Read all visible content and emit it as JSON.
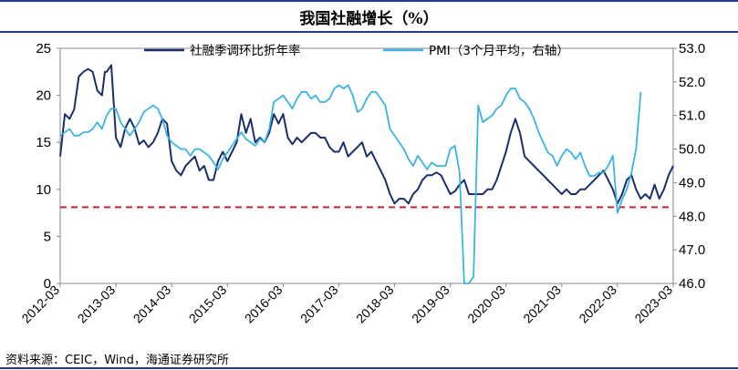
{
  "title": "我国社融增长（%）",
  "source": "资料来源：CEIC，Wind，海通证券研究所",
  "colors": {
    "social_financing": "#1a2f6e",
    "pmi": "#3ab4e6",
    "threshold": "#c0262d"
  },
  "chart_data": {
    "type": "line",
    "title": "",
    "xlabel": "",
    "ylabel": "",
    "ylabel_right": "",
    "x_tick_labels": [
      "2012-03",
      "2013-03",
      "2014-03",
      "2015-03",
      "2016-03",
      "2017-03",
      "2018-03",
      "2019-03",
      "2020-03",
      "2021-03",
      "2022-03",
      "2023-03"
    ],
    "y_left": {
      "range": [
        0,
        25
      ],
      "ticks": [
        0,
        5,
        10,
        15,
        20,
        25
      ]
    },
    "y_right": {
      "range": [
        46.0,
        53.0
      ],
      "ticks": [
        "46.0",
        "47.0",
        "48.0",
        "49.0",
        "50.0",
        "51.0",
        "52.0",
        "53.0"
      ]
    },
    "legend_position": "top",
    "grid": false,
    "reference_line": {
      "axis": "left",
      "value": 8.1,
      "style": "dashed"
    },
    "series": [
      {
        "name": "社融季调环比折年率",
        "axis": "left",
        "points": [
          [
            "2012-03",
            13.5
          ],
          [
            "2012-04",
            18
          ],
          [
            "2012-05",
            17.5
          ],
          [
            "2012-06",
            18.5
          ],
          [
            "2012-07",
            22
          ],
          [
            "2012-08",
            22.5
          ],
          [
            "2012-09",
            22.8
          ],
          [
            "2012-10",
            22.5
          ],
          [
            "2012-11",
            20.5
          ],
          [
            "2012-12",
            20
          ],
          [
            "2012-12-20",
            22.5
          ],
          [
            "2013-01",
            22.5
          ],
          [
            "2013-02",
            23.2
          ],
          [
            "2013-03",
            15.5
          ],
          [
            "2013-04",
            14.5
          ],
          [
            "2013-05",
            16.5
          ],
          [
            "2013-06",
            17.5
          ],
          [
            "2013-07",
            16.5
          ],
          [
            "2013-08",
            14.8
          ],
          [
            "2013-09",
            15.2
          ],
          [
            "2013-10",
            14.5
          ],
          [
            "2013-11",
            15
          ],
          [
            "2013-12",
            16
          ],
          [
            "2014-01",
            17.5
          ],
          [
            "2014-02",
            17
          ],
          [
            "2014-03",
            13
          ],
          [
            "2014-04",
            12
          ],
          [
            "2014-05",
            11.5
          ],
          [
            "2014-06",
            12.5
          ],
          [
            "2014-07",
            13
          ],
          [
            "2014-08",
            13.5
          ],
          [
            "2014-09",
            12
          ],
          [
            "2014-10",
            12.5
          ],
          [
            "2014-11",
            11
          ],
          [
            "2014-12",
            11
          ],
          [
            "2015-01",
            13
          ],
          [
            "2015-02",
            14
          ],
          [
            "2015-03",
            13
          ],
          [
            "2015-04",
            14
          ],
          [
            "2015-05",
            15
          ],
          [
            "2015-06",
            18
          ],
          [
            "2015-07",
            16
          ],
          [
            "2015-08",
            17.5
          ],
          [
            "2015-09",
            15
          ],
          [
            "2015-10",
            15.5
          ],
          [
            "2015-11",
            15
          ],
          [
            "2015-12",
            16
          ],
          [
            "2016-01",
            18
          ],
          [
            "2016-02",
            17
          ],
          [
            "2016-03",
            18
          ],
          [
            "2016-04",
            15.5
          ],
          [
            "2016-05",
            14.8
          ],
          [
            "2016-06",
            15.5
          ],
          [
            "2016-07",
            15
          ],
          [
            "2016-08",
            15.5
          ],
          [
            "2016-09",
            16
          ],
          [
            "2016-10",
            16
          ],
          [
            "2016-11",
            15.5
          ],
          [
            "2016-12",
            15.5
          ],
          [
            "2017-01",
            14.5
          ],
          [
            "2017-02",
            14
          ],
          [
            "2017-03",
            14
          ],
          [
            "2017-04",
            15
          ],
          [
            "2017-05",
            13.5
          ],
          [
            "2017-06",
            14
          ],
          [
            "2017-07",
            14.5
          ],
          [
            "2017-08",
            15
          ],
          [
            "2017-09",
            13.5
          ],
          [
            "2017-10",
            14
          ],
          [
            "2017-11",
            13
          ],
          [
            "2017-12",
            12
          ],
          [
            "2018-01",
            11
          ],
          [
            "2018-02",
            9.5
          ],
          [
            "2018-03",
            8.5
          ],
          [
            "2018-04",
            9
          ],
          [
            "2018-05",
            9
          ],
          [
            "2018-06",
            8.5
          ],
          [
            "2018-07",
            9.5
          ],
          [
            "2018-08",
            10
          ],
          [
            "2018-09",
            11
          ],
          [
            "2018-10",
            11.5
          ],
          [
            "2018-11",
            11.5
          ],
          [
            "2018-12",
            11.8
          ],
          [
            "2019-01",
            11.5
          ],
          [
            "2019-02",
            10.5
          ],
          [
            "2019-03",
            9.5
          ],
          [
            "2019-04",
            9.8
          ],
          [
            "2019-05",
            10.5
          ],
          [
            "2019-06",
            11
          ],
          [
            "2019-07",
            9.5
          ],
          [
            "2019-08",
            9.5
          ],
          [
            "2019-09",
            9.5
          ],
          [
            "2019-10",
            9.5
          ],
          [
            "2019-11",
            10
          ],
          [
            "2019-12",
            10
          ],
          [
            "2020-01",
            11
          ],
          [
            "2020-02",
            12.5
          ],
          [
            "2020-03",
            14
          ],
          [
            "2020-04",
            16
          ],
          [
            "2020-05",
            17.5
          ],
          [
            "2020-06",
            16
          ],
          [
            "2020-07",
            13.5
          ],
          [
            "2020-08",
            13
          ],
          [
            "2020-09",
            12.5
          ],
          [
            "2020-10",
            12
          ],
          [
            "2020-11",
            11.5
          ],
          [
            "2020-12",
            11
          ],
          [
            "2021-01",
            10.5
          ],
          [
            "2021-02",
            10
          ],
          [
            "2021-03",
            9.5
          ],
          [
            "2021-04",
            10
          ],
          [
            "2021-05",
            9.5
          ],
          [
            "2021-06",
            9.5
          ],
          [
            "2021-07",
            10
          ],
          [
            "2021-08",
            10
          ],
          [
            "2021-09",
            10.5
          ],
          [
            "2021-10",
            11
          ],
          [
            "2021-11",
            11.5
          ],
          [
            "2021-12",
            12
          ],
          [
            "2022-01",
            11
          ],
          [
            "2022-02",
            10
          ],
          [
            "2022-03",
            8.5
          ],
          [
            "2022-04",
            9.5
          ],
          [
            "2022-05",
            11
          ],
          [
            "2022-06",
            11.5
          ],
          [
            "2022-07",
            10
          ],
          [
            "2022-08",
            9
          ],
          [
            "2022-09",
            9.5
          ],
          [
            "2022-10",
            9
          ],
          [
            "2022-11",
            10.5
          ],
          [
            "2022-12",
            9
          ],
          [
            "2023-01",
            10
          ],
          [
            "2023-02",
            11.5
          ],
          [
            "2023-03",
            12.5
          ]
        ]
      },
      {
        "name": "PMI（3个月平均，右轴）",
        "axis": "right",
        "points": [
          [
            "2012-03",
            50.4
          ],
          [
            "2012-04",
            50.5
          ],
          [
            "2012-05",
            50.6
          ],
          [
            "2012-06",
            50.4
          ],
          [
            "2012-07",
            50.4
          ],
          [
            "2012-08",
            50.5
          ],
          [
            "2012-09",
            50.5
          ],
          [
            "2012-10",
            50.6
          ],
          [
            "2012-11",
            50.8
          ],
          [
            "2012-12",
            50.6
          ],
          [
            "2013-01",
            51
          ],
          [
            "2013-02",
            51.2
          ],
          [
            "2013-03",
            51.2
          ],
          [
            "2013-04",
            50.8
          ],
          [
            "2013-05",
            50.6
          ],
          [
            "2013-06",
            50.4
          ],
          [
            "2013-07",
            50.6
          ],
          [
            "2013-08",
            50.8
          ],
          [
            "2013-09",
            51.1
          ],
          [
            "2013-10",
            51.2
          ],
          [
            "2013-11",
            51.3
          ],
          [
            "2013-12",
            51.2
          ],
          [
            "2014-01",
            50.9
          ],
          [
            "2014-02",
            50.4
          ],
          [
            "2014-03",
            50.2
          ],
          [
            "2014-04",
            50.1
          ],
          [
            "2014-05",
            50
          ],
          [
            "2014-06",
            50
          ],
          [
            "2014-07",
            49.8
          ],
          [
            "2014-08",
            50
          ],
          [
            "2014-09",
            50
          ],
          [
            "2014-10",
            49.9
          ],
          [
            "2014-11",
            49.8
          ],
          [
            "2014-12",
            49.6
          ],
          [
            "2015-01",
            49.4
          ],
          [
            "2015-02",
            49.7
          ],
          [
            "2015-03",
            49.9
          ],
          [
            "2015-04",
            50.1
          ],
          [
            "2015-05",
            50.3
          ],
          [
            "2015-06",
            50.5
          ],
          [
            "2015-07",
            50.3
          ],
          [
            "2015-08",
            50.2
          ],
          [
            "2015-09",
            50.1
          ],
          [
            "2015-10",
            50.3
          ],
          [
            "2015-11",
            50.2
          ],
          [
            "2015-12",
            50.6
          ],
          [
            "2016-01",
            51.4
          ],
          [
            "2016-02",
            51.5
          ],
          [
            "2016-03",
            51.6
          ],
          [
            "2016-04",
            51.4
          ],
          [
            "2016-05",
            51.2
          ],
          [
            "2016-06",
            51.5
          ],
          [
            "2016-07",
            51.7
          ],
          [
            "2016-08",
            51.7
          ],
          [
            "2016-09",
            51.5
          ],
          [
            "2016-10",
            51.6
          ],
          [
            "2016-11",
            51.4
          ],
          [
            "2016-12",
            51.4
          ],
          [
            "2017-01",
            51.5
          ],
          [
            "2017-02",
            51.8
          ],
          [
            "2017-03",
            51.9
          ],
          [
            "2017-04",
            51.8
          ],
          [
            "2017-05",
            51.9
          ],
          [
            "2017-06",
            51.6
          ],
          [
            "2017-07",
            51.1
          ],
          [
            "2017-08",
            51.2
          ],
          [
            "2017-09",
            51.5
          ],
          [
            "2017-10",
            51.7
          ],
          [
            "2017-11",
            51.7
          ],
          [
            "2017-12",
            51.5
          ],
          [
            "2018-01",
            51.3
          ],
          [
            "2018-02",
            50.6
          ],
          [
            "2018-03",
            50.4
          ],
          [
            "2018-04",
            50.2
          ],
          [
            "2018-05",
            50
          ],
          [
            "2018-06",
            49.7
          ],
          [
            "2018-07",
            49.5
          ],
          [
            "2018-08",
            49.8
          ],
          [
            "2018-09",
            49.6
          ],
          [
            "2018-10",
            49.4
          ],
          [
            "2018-11",
            49.6
          ],
          [
            "2018-12",
            49.5
          ],
          [
            "2019-01",
            49.5
          ],
          [
            "2019-02",
            49.5
          ],
          [
            "2019-03",
            50
          ],
          [
            "2019-04",
            50.1
          ],
          [
            "2019-05",
            49.3
          ],
          [
            "2019-06",
            46
          ],
          [
            "2019-07",
            46
          ],
          [
            "2019-08",
            46.2
          ],
          [
            "2019-09",
            51.3
          ],
          [
            "2019-10",
            50.8
          ],
          [
            "2019-11",
            50.9
          ],
          [
            "2019-12",
            51
          ],
          [
            "2020-01",
            51.2
          ],
          [
            "2020-02",
            51.3
          ],
          [
            "2020-03",
            51.6
          ],
          [
            "2020-04",
            51.8
          ],
          [
            "2020-05",
            51.8
          ],
          [
            "2020-06",
            51.5
          ],
          [
            "2020-07",
            51.4
          ],
          [
            "2020-08",
            51.2
          ],
          [
            "2020-09",
            50.9
          ],
          [
            "2020-10",
            50.5
          ],
          [
            "2020-11",
            50.2
          ],
          [
            "2020-12",
            49.9
          ],
          [
            "2021-01",
            49.8
          ],
          [
            "2021-02",
            49.5
          ],
          [
            "2021-03",
            49.8
          ],
          [
            "2021-04",
            50
          ],
          [
            "2021-05",
            49.9
          ],
          [
            "2021-06",
            49.7
          ],
          [
            "2021-07",
            49.9
          ],
          [
            "2021-08",
            49.5
          ],
          [
            "2021-09",
            49.2
          ],
          [
            "2021-10",
            49.2
          ],
          [
            "2021-11",
            49.3
          ],
          [
            "2021-12",
            49.3
          ],
          [
            "2022-01",
            49.5
          ],
          [
            "2022-02",
            49.8
          ],
          [
            "2022-03",
            48.1
          ],
          [
            "2022-04",
            48.5
          ],
          [
            "2022-05",
            48.8
          ],
          [
            "2022-06",
            49.3
          ],
          [
            "2022-07",
            50
          ],
          [
            "2022-08",
            51.7
          ]
        ]
      }
    ]
  }
}
